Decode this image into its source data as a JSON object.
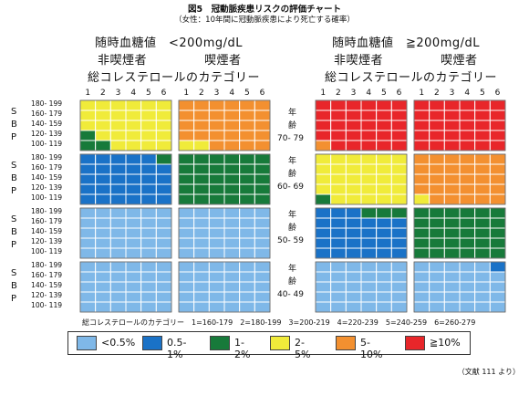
{
  "title": "図5　冠動脈疾患リスクの評価チャート",
  "subtitle": "（女性：10年間に冠動脈疾患により死亡する確率）",
  "headers": {
    "left_glucose": "随時血糖値　<200mg/dL",
    "right_glucose": "随時血糖値　≧200mg/dL",
    "nonsmoker": "非喫煙者",
    "smoker": "喫煙者",
    "chol_category": "総コレステロールのカテゴリー"
  },
  "col_numbers": [
    "1",
    "2",
    "3",
    "4",
    "5",
    "6"
  ],
  "sbp_letters": [
    "S",
    "B",
    "P"
  ],
  "sbp_labels": [
    "180- 199",
    "160- 179",
    "140- 159",
    "120- 139",
    "100- 119"
  ],
  "age_groups": [
    {
      "label1": "年",
      "label2": "齢",
      "range": "70- 79"
    },
    {
      "label1": "年",
      "label2": "齢",
      "range": "60- 69"
    },
    {
      "label1": "年",
      "label2": "齢",
      "range": "50- 59"
    },
    {
      "label1": "年",
      "label2": "齢",
      "range": "40- 49"
    }
  ],
  "footer": "総コレステロールのカテゴリー　1=160-179　2=180-199　3=200-219　4=220-239　5=240-259　6=260-279",
  "legend": [
    {
      "label": "<0.5%",
      "color": "#7fb8e8"
    },
    {
      "label": "0.5-1%",
      "color": "#1a72c7"
    },
    {
      "label": "1-2%",
      "color": "#177a3a"
    },
    {
      "label": "2-5%",
      "color": "#f0eb3a"
    },
    {
      "label": "5-10%",
      "color": "#f39030"
    },
    {
      "label": "≧10%",
      "color": "#e8262a"
    }
  ],
  "source": "（文献 111 より）",
  "chart_data": {
    "type": "heatmap",
    "title": "冠動脈疾患リスクの評価チャート",
    "levels": [
      "<0.5%",
      "0.5-1%",
      "1-2%",
      "2-5%",
      "5-10%",
      "≧10%"
    ],
    "rows_sbp": [
      "180-199",
      "160-179",
      "140-159",
      "120-139",
      "100-119"
    ],
    "cols_cholesterol_category": [
      1,
      2,
      3,
      4,
      5,
      6
    ],
    "note": "cell values are risk level indices 0-5 into levels; rows top to bottom, cols 1..6",
    "grids": [
      {
        "age": "70-79",
        "glucose": "<200mg/dL",
        "smoking": "非喫煙者",
        "cells": [
          [
            3,
            3,
            3,
            3,
            3,
            3
          ],
          [
            3,
            3,
            3,
            3,
            3,
            3
          ],
          [
            3,
            3,
            3,
            3,
            3,
            3
          ],
          [
            2,
            3,
            3,
            3,
            3,
            3
          ],
          [
            2,
            2,
            3,
            3,
            3,
            3
          ]
        ]
      },
      {
        "age": "70-79",
        "glucose": "<200mg/dL",
        "smoking": "喫煙者",
        "cells": [
          [
            4,
            4,
            4,
            4,
            4,
            4
          ],
          [
            4,
            4,
            4,
            4,
            4,
            4
          ],
          [
            4,
            4,
            4,
            4,
            4,
            4
          ],
          [
            4,
            4,
            4,
            4,
            4,
            4
          ],
          [
            3,
            3,
            4,
            4,
            4,
            4
          ]
        ]
      },
      {
        "age": "70-79",
        "glucose": "≧200mg/dL",
        "smoking": "非喫煙者",
        "cells": [
          [
            5,
            5,
            5,
            5,
            5,
            5
          ],
          [
            5,
            5,
            5,
            5,
            5,
            5
          ],
          [
            5,
            5,
            5,
            5,
            5,
            5
          ],
          [
            5,
            5,
            5,
            5,
            5,
            5
          ],
          [
            4,
            5,
            5,
            5,
            5,
            5
          ]
        ]
      },
      {
        "age": "70-79",
        "glucose": "≧200mg/dL",
        "smoking": "喫煙者",
        "cells": [
          [
            5,
            5,
            5,
            5,
            5,
            5
          ],
          [
            5,
            5,
            5,
            5,
            5,
            5
          ],
          [
            5,
            5,
            5,
            5,
            5,
            5
          ],
          [
            5,
            5,
            5,
            5,
            5,
            5
          ],
          [
            5,
            5,
            5,
            5,
            5,
            5
          ]
        ]
      },
      {
        "age": "60-69",
        "glucose": "<200mg/dL",
        "smoking": "非喫煙者",
        "cells": [
          [
            1,
            1,
            1,
            1,
            1,
            2
          ],
          [
            1,
            1,
            1,
            1,
            1,
            1
          ],
          [
            1,
            1,
            1,
            1,
            1,
            1
          ],
          [
            1,
            1,
            1,
            1,
            1,
            1
          ],
          [
            1,
            1,
            1,
            1,
            1,
            1
          ]
        ]
      },
      {
        "age": "60-69",
        "glucose": "<200mg/dL",
        "smoking": "喫煙者",
        "cells": [
          [
            2,
            2,
            2,
            2,
            2,
            2
          ],
          [
            2,
            2,
            2,
            2,
            2,
            2
          ],
          [
            2,
            2,
            2,
            2,
            2,
            2
          ],
          [
            2,
            2,
            2,
            2,
            2,
            2
          ],
          [
            2,
            2,
            2,
            2,
            2,
            2
          ]
        ]
      },
      {
        "age": "60-69",
        "glucose": "≧200mg/dL",
        "smoking": "非喫煙者",
        "cells": [
          [
            3,
            3,
            3,
            3,
            3,
            3
          ],
          [
            3,
            3,
            3,
            3,
            3,
            3
          ],
          [
            3,
            3,
            3,
            3,
            3,
            3
          ],
          [
            3,
            3,
            3,
            3,
            3,
            3
          ],
          [
            2,
            3,
            3,
            3,
            3,
            3
          ]
        ]
      },
      {
        "age": "60-69",
        "glucose": "≧200mg/dL",
        "smoking": "喫煙者",
        "cells": [
          [
            4,
            4,
            4,
            4,
            4,
            4
          ],
          [
            4,
            4,
            4,
            4,
            4,
            4
          ],
          [
            4,
            4,
            4,
            4,
            4,
            4
          ],
          [
            4,
            4,
            4,
            4,
            4,
            4
          ],
          [
            3,
            4,
            4,
            4,
            4,
            4
          ]
        ]
      },
      {
        "age": "50-59",
        "glucose": "<200mg/dL",
        "smoking": "非喫煙者",
        "cells": [
          [
            0,
            0,
            0,
            0,
            0,
            0
          ],
          [
            0,
            0,
            0,
            0,
            0,
            0
          ],
          [
            0,
            0,
            0,
            0,
            0,
            0
          ],
          [
            0,
            0,
            0,
            0,
            0,
            0
          ],
          [
            0,
            0,
            0,
            0,
            0,
            0
          ]
        ]
      },
      {
        "age": "50-59",
        "glucose": "<200mg/dL",
        "smoking": "喫煙者",
        "cells": [
          [
            0,
            0,
            0,
            0,
            0,
            0
          ],
          [
            0,
            0,
            0,
            0,
            0,
            0
          ],
          [
            0,
            0,
            0,
            0,
            0,
            0
          ],
          [
            0,
            0,
            0,
            0,
            0,
            0
          ],
          [
            0,
            0,
            0,
            0,
            0,
            0
          ]
        ]
      },
      {
        "age": "50-59",
        "glucose": "≧200mg/dL",
        "smoking": "非喫煙者",
        "cells": [
          [
            1,
            1,
            1,
            2,
            2,
            2
          ],
          [
            1,
            1,
            1,
            1,
            1,
            1
          ],
          [
            1,
            1,
            1,
            1,
            1,
            1
          ],
          [
            1,
            1,
            1,
            1,
            1,
            1
          ],
          [
            1,
            1,
            1,
            1,
            1,
            1
          ]
        ]
      },
      {
        "age": "50-59",
        "glucose": "≧200mg/dL",
        "smoking": "喫煙者",
        "cells": [
          [
            2,
            2,
            2,
            2,
            2,
            2
          ],
          [
            2,
            2,
            2,
            2,
            2,
            2
          ],
          [
            2,
            2,
            2,
            2,
            2,
            2
          ],
          [
            2,
            2,
            2,
            2,
            2,
            2
          ],
          [
            2,
            2,
            2,
            2,
            2,
            2
          ]
        ]
      },
      {
        "age": "40-49",
        "glucose": "<200mg/dL",
        "smoking": "非喫煙者",
        "cells": [
          [
            0,
            0,
            0,
            0,
            0,
            0
          ],
          [
            0,
            0,
            0,
            0,
            0,
            0
          ],
          [
            0,
            0,
            0,
            0,
            0,
            0
          ],
          [
            0,
            0,
            0,
            0,
            0,
            0
          ],
          [
            0,
            0,
            0,
            0,
            0,
            0
          ]
        ]
      },
      {
        "age": "40-49",
        "glucose": "<200mg/dL",
        "smoking": "喫煙者",
        "cells": [
          [
            0,
            0,
            0,
            0,
            0,
            0
          ],
          [
            0,
            0,
            0,
            0,
            0,
            0
          ],
          [
            0,
            0,
            0,
            0,
            0,
            0
          ],
          [
            0,
            0,
            0,
            0,
            0,
            0
          ],
          [
            0,
            0,
            0,
            0,
            0,
            0
          ]
        ]
      },
      {
        "age": "40-49",
        "glucose": "≧200mg/dL",
        "smoking": "非喫煙者",
        "cells": [
          [
            0,
            0,
            0,
            0,
            0,
            0
          ],
          [
            0,
            0,
            0,
            0,
            0,
            0
          ],
          [
            0,
            0,
            0,
            0,
            0,
            0
          ],
          [
            0,
            0,
            0,
            0,
            0,
            0
          ],
          [
            0,
            0,
            0,
            0,
            0,
            0
          ]
        ]
      },
      {
        "age": "40-49",
        "glucose": "≧200mg/dL",
        "smoking": "喫煙者",
        "cells": [
          [
            0,
            0,
            0,
            0,
            0,
            1
          ],
          [
            0,
            0,
            0,
            0,
            0,
            0
          ],
          [
            0,
            0,
            0,
            0,
            0,
            0
          ],
          [
            0,
            0,
            0,
            0,
            0,
            0
          ],
          [
            0,
            0,
            0,
            0,
            0,
            0
          ]
        ]
      }
    ]
  }
}
